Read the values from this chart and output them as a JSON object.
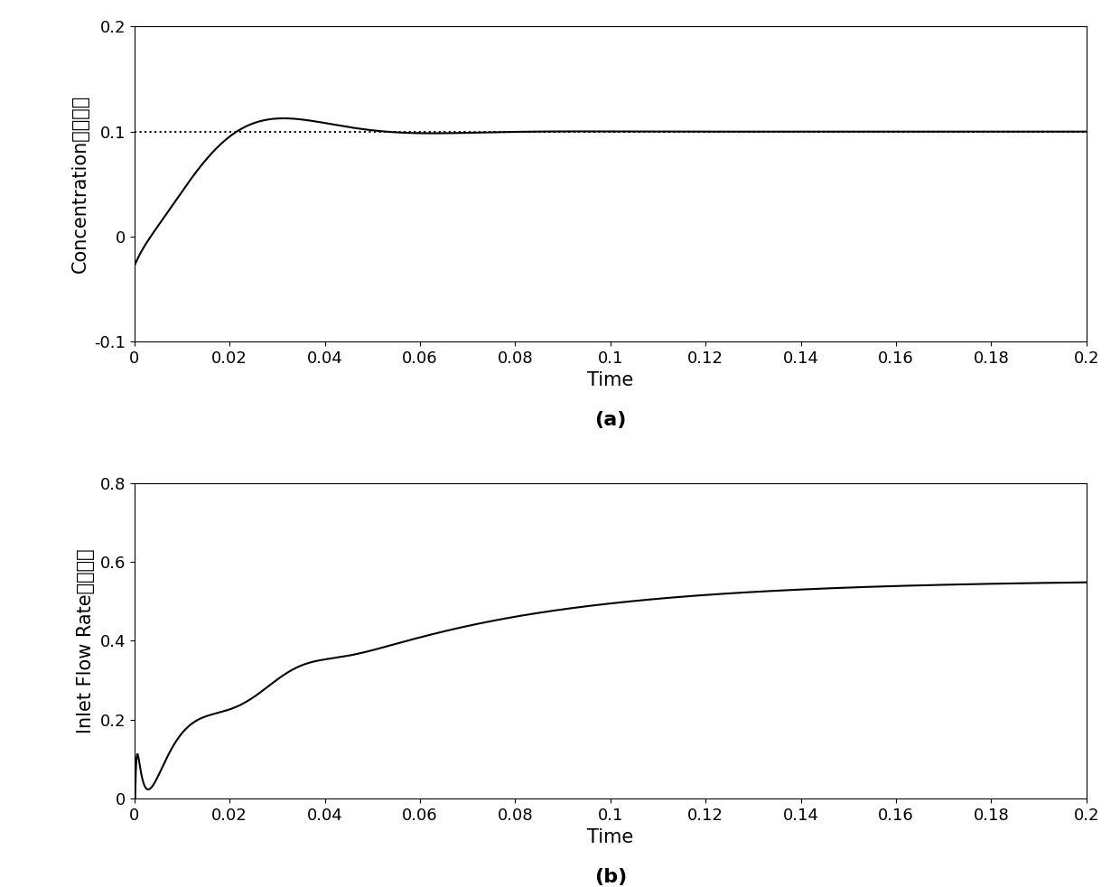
{
  "title_a": "(a)",
  "title_b": "(b)",
  "xlabel": "Time",
  "ylabel_a": "Concentration（浓度）",
  "ylabel_b": "Inlet Flow Rate（流量）",
  "xlim": [
    0,
    0.2
  ],
  "ylim_a": [
    -0.1,
    0.2
  ],
  "ylim_b": [
    0,
    0.8
  ],
  "yticks_a": [
    -0.1,
    0,
    0.1,
    0.2
  ],
  "yticks_b": [
    0,
    0.2,
    0.4,
    0.6,
    0.8
  ],
  "xticks": [
    0,
    0.02,
    0.04,
    0.06,
    0.08,
    0.1,
    0.12,
    0.14,
    0.16,
    0.18,
    0.2
  ],
  "setpoint_a": 0.1,
  "steady_b": 0.555,
  "line_color": "#000000",
  "dotted_color": "#000000",
  "background_color": "#ffffff",
  "label_font_size": 15,
  "tick_font_size": 13,
  "caption_font_size": 16
}
